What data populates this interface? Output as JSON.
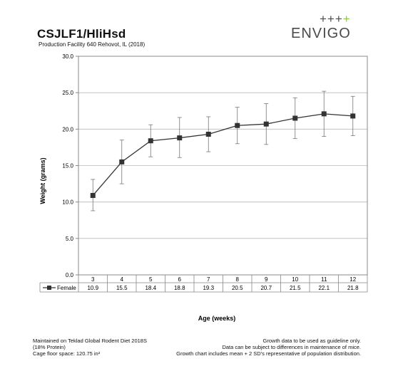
{
  "header": {
    "title": "CSJLF1/HliHsd",
    "subtitle": "Production Facility 640 Rehovot, IL (2018)"
  },
  "logo": {
    "plus_dark": "+++",
    "plus_green": "+",
    "word": "ENVIGO",
    "colors": {
      "text": "#4a4a4a",
      "accent": "#8dc63f"
    }
  },
  "chart_data": {
    "type": "line",
    "xlabel": "Age (weeks)",
    "ylabel": "Weight (grams)",
    "ylim": [
      0,
      30
    ],
    "yticks": [
      "0.0",
      "5.0",
      "10.0",
      "15.0",
      "20.0",
      "25.0",
      "30.0"
    ],
    "categories": [
      "3",
      "4",
      "5",
      "6",
      "7",
      "8",
      "9",
      "10",
      "11",
      "12"
    ],
    "grid": "horizontal",
    "legend": "data-table",
    "series": [
      {
        "name": "Female",
        "color": "#333333",
        "values": [
          10.9,
          15.5,
          18.4,
          18.8,
          19.3,
          20.5,
          20.7,
          21.5,
          22.1,
          21.8
        ],
        "labels": [
          "10.9",
          "15.5",
          "18.4",
          "18.8",
          "19.3",
          "20.5",
          "20.7",
          "21.5",
          "22.1",
          "21.8"
        ],
        "error_low": [
          8.8,
          12.5,
          16.2,
          16.1,
          16.9,
          18.0,
          17.9,
          18.7,
          19.0,
          19.1
        ],
        "error_high": [
          13.1,
          18.5,
          20.6,
          21.6,
          21.7,
          23.0,
          23.5,
          24.3,
          25.2,
          24.5
        ]
      }
    ]
  },
  "footer": {
    "left_line1": "Maintained on Teklad Global Rodent Diet 2018S",
    "left_line2": "(18% Protein)",
    "left_line3": "Cage floor space: 120.75 in²",
    "right_line1": "Growth data to be used as guideline only.",
    "right_line2": "Data can be subject to differences in maintenance of mice.",
    "right_line3": "Growth chart includes mean + 2 SD's representative of population distribution."
  }
}
